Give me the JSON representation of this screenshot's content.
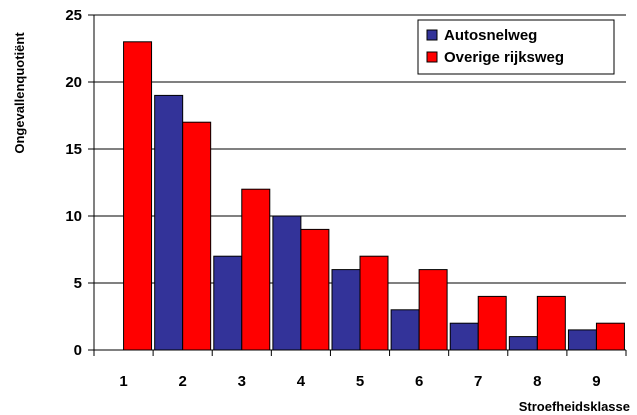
{
  "chart_data": {
    "type": "bar",
    "title": "",
    "xlabel": "Stroefheidsklasse",
    "ylabel": "Ongevallenquotiënt",
    "categories": [
      "1",
      "2",
      "3",
      "4",
      "5",
      "6",
      "7",
      "8",
      "9"
    ],
    "ylim": [
      0,
      25
    ],
    "yticks": [
      "0",
      "5",
      "10",
      "15",
      "20",
      "25"
    ],
    "grid": true,
    "legend_position": "top-right",
    "series": [
      {
        "name": "Autosnelweg",
        "color": "#333399",
        "values": [
          0,
          19,
          7,
          10,
          6,
          3,
          2,
          1,
          1.5
        ]
      },
      {
        "name": "Overige rijksweg",
        "color": "#ff0000",
        "values": [
          23,
          17,
          12,
          9,
          7,
          6,
          4,
          4,
          2
        ]
      }
    ]
  }
}
